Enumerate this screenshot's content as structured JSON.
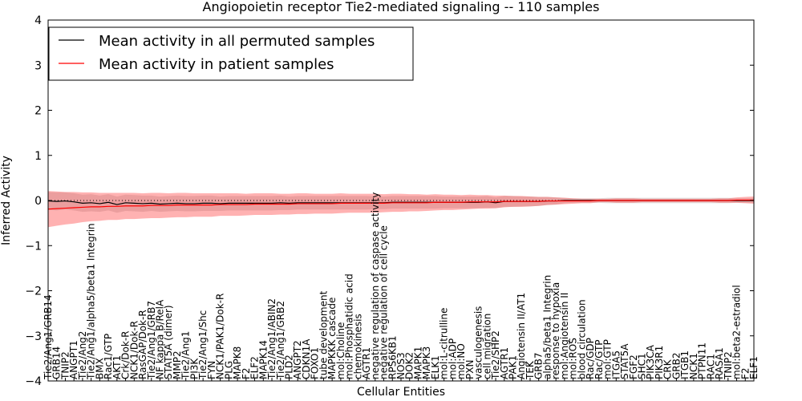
{
  "chart_data": {
    "type": "line",
    "title": "Angiopoietin receptor Tie2-mediated signaling -- 110 samples",
    "xlabel": "Cellular Entities",
    "ylabel": "Inferred Activity",
    "ylim": [
      -4,
      4
    ],
    "yticks": [
      4,
      3,
      2,
      1,
      0,
      -1,
      -2,
      -3,
      -4
    ],
    "legend_position": "top-left",
    "reference_line": 0,
    "categories": [
      "Tie2/Ang1/GRB14",
      "GRB14",
      "TNIP2",
      "ANGPT1",
      "Tie2/Ang2",
      "Tie2/Ang1/alpha5/beta1 Integrin",
      "BMX",
      "Rac1/GTP",
      "AKT1",
      "Crk/Dok-R",
      "NCK1/Dok-R",
      "RasGAP/Dok-R",
      "Tie2/Ang1/GRB7",
      "NF kappa B/RelA",
      "STAT5A (dimer)",
      "MMP2",
      "Tie2/Ang1",
      "PI3K",
      "Tie2/Ang1/Shc",
      "FYN",
      "NCK1/PAK1/Dok-R",
      "PLG",
      "MAPK8",
      "F2",
      "ELF2",
      "MAPK14",
      "Tie2/Ang1/ABIN2",
      "Tie2/Ang1/GRB2",
      "PLD2",
      "ANGPT2",
      "CDKN1A",
      "FOXO1",
      "tube development",
      "MAPKKK cascade",
      "mol:Choline",
      "mol:Phosphatidic acid",
      "chemokinesis",
      "AGTR1",
      "negative regulation of caspase activity",
      "negative regulation of cell cycle",
      "RPS6KB1",
      "NOS3",
      "DOK2",
      "MAPK1",
      "MAPK3",
      "ELK1",
      "mol:L-citrulline",
      "mol:ADP",
      "mol:NO",
      "PXN",
      "vasculogenesis",
      "cell migration",
      "Tie2/SHP2",
      "AGTR1",
      "PAK1",
      "Angiotensin II/AT1",
      "TEK",
      "GRB7",
      "alpha5/beta1 Integrin",
      "response to hypoxia",
      "mol:Angiotensin II",
      "mol:ROS",
      "blood circulation",
      "Rac/GDP",
      "Rac/GTP",
      "mol:GTP",
      "ITGA5",
      "STAT5A",
      "FGF2",
      "SHC1",
      "PIK3CA",
      "PIK3R1",
      "CRK",
      "GRB2",
      "ITGB1",
      "NCK1",
      "PTPN11",
      "RAC1",
      "RASA1",
      "TNIP2",
      "mol:beta2-estradiol",
      "F2",
      "ELF1"
    ],
    "series": [
      {
        "name": "Mean activity in all permuted samples",
        "color": "#000000",
        "values": [
          -0.01,
          -0.02,
          -0.01,
          -0.03,
          -0.06,
          -0.05,
          -0.07,
          -0.04,
          -0.09,
          -0.05,
          -0.06,
          -0.07,
          -0.06,
          -0.08,
          -0.07,
          -0.06,
          -0.07,
          -0.07,
          -0.06,
          -0.06,
          -0.07,
          -0.06,
          -0.06,
          -0.06,
          -0.06,
          -0.06,
          -0.06,
          -0.05,
          -0.06,
          -0.05,
          -0.05,
          -0.05,
          -0.05,
          -0.05,
          -0.05,
          -0.05,
          -0.05,
          -0.05,
          -0.05,
          -0.05,
          -0.04,
          -0.04,
          -0.04,
          -0.04,
          -0.04,
          -0.04,
          -0.04,
          -0.04,
          -0.04,
          -0.04,
          -0.04,
          -0.03,
          -0.05,
          -0.02,
          -0.02,
          -0.02,
          -0.02,
          -0.02,
          -0.01,
          -0.01,
          0.0,
          0.0,
          0.0,
          0.0,
          0.0,
          0.0,
          0.0,
          0.0,
          0.0,
          0.0,
          0.0,
          0.0,
          0.0,
          0.0,
          0.0,
          0.0,
          0.0,
          0.0,
          0.0,
          0.0,
          0.0,
          0.0,
          0.0
        ],
        "band": [
          0.2,
          0.2,
          0.19,
          0.19,
          0.19,
          0.19,
          0.18,
          0.18,
          0.18,
          0.18,
          0.18,
          0.18,
          0.17,
          0.17,
          0.17,
          0.17,
          0.17,
          0.17,
          0.17,
          0.17,
          0.16,
          0.16,
          0.16,
          0.16,
          0.16,
          0.16,
          0.16,
          0.16,
          0.15,
          0.15,
          0.15,
          0.15,
          0.15,
          0.15,
          0.15,
          0.15,
          0.15,
          0.15,
          0.14,
          0.14,
          0.14,
          0.14,
          0.14,
          0.14,
          0.14,
          0.14,
          0.13,
          0.13,
          0.13,
          0.13,
          0.13,
          0.13,
          0.12,
          0.12,
          0.12,
          0.11,
          0.11,
          0.1,
          0.09,
          0.08,
          0.06,
          0.05,
          0.05,
          0.05,
          0.05,
          0.06,
          0.06,
          0.06,
          0.06,
          0.06,
          0.06,
          0.06,
          0.06,
          0.06,
          0.06,
          0.06,
          0.06,
          0.06,
          0.06,
          0.06,
          0.05,
          0.05,
          0.05
        ]
      },
      {
        "name": "Mean activity in patient samples",
        "color": "#ff0000",
        "values": [
          -0.19,
          -0.18,
          -0.17,
          -0.16,
          -0.15,
          -0.14,
          -0.14,
          -0.13,
          -0.13,
          -0.12,
          -0.12,
          -0.12,
          -0.11,
          -0.11,
          -0.11,
          -0.1,
          -0.1,
          -0.1,
          -0.1,
          -0.1,
          -0.09,
          -0.09,
          -0.09,
          -0.09,
          -0.08,
          -0.08,
          -0.08,
          -0.08,
          -0.08,
          -0.07,
          -0.07,
          -0.07,
          -0.07,
          -0.07,
          -0.06,
          -0.06,
          -0.06,
          -0.06,
          -0.06,
          -0.06,
          -0.05,
          -0.05,
          -0.05,
          -0.05,
          -0.05,
          -0.04,
          -0.04,
          -0.04,
          -0.04,
          -0.03,
          -0.03,
          -0.03,
          -0.03,
          -0.02,
          -0.02,
          -0.02,
          -0.02,
          -0.02,
          -0.01,
          -0.01,
          -0.01,
          -0.01,
          -0.01,
          -0.01,
          0.0,
          0.0,
          0.0,
          0.0,
          0.0,
          0.0,
          0.0,
          0.0,
          0.0,
          0.0,
          0.0,
          0.0,
          0.0,
          0.0,
          0.0,
          0.0,
          0.01,
          0.01,
          0.01
        ],
        "band": [
          0.4,
          0.38,
          0.36,
          0.35,
          0.33,
          0.32,
          0.31,
          0.3,
          0.3,
          0.29,
          0.29,
          0.28,
          0.28,
          0.28,
          0.27,
          0.27,
          0.27,
          0.26,
          0.26,
          0.26,
          0.25,
          0.25,
          0.25,
          0.24,
          0.24,
          0.24,
          0.24,
          0.23,
          0.23,
          0.23,
          0.23,
          0.22,
          0.22,
          0.22,
          0.22,
          0.21,
          0.21,
          0.21,
          0.21,
          0.2,
          0.2,
          0.2,
          0.19,
          0.19,
          0.18,
          0.18,
          0.17,
          0.17,
          0.16,
          0.16,
          0.15,
          0.15,
          0.14,
          0.13,
          0.12,
          0.12,
          0.11,
          0.1,
          0.09,
          0.08,
          0.07,
          0.06,
          0.05,
          0.05,
          0.04,
          0.04,
          0.05,
          0.05,
          0.05,
          0.04,
          0.04,
          0.04,
          0.04,
          0.04,
          0.04,
          0.04,
          0.04,
          0.04,
          0.05,
          0.05,
          0.06,
          0.07,
          0.08
        ]
      }
    ]
  }
}
